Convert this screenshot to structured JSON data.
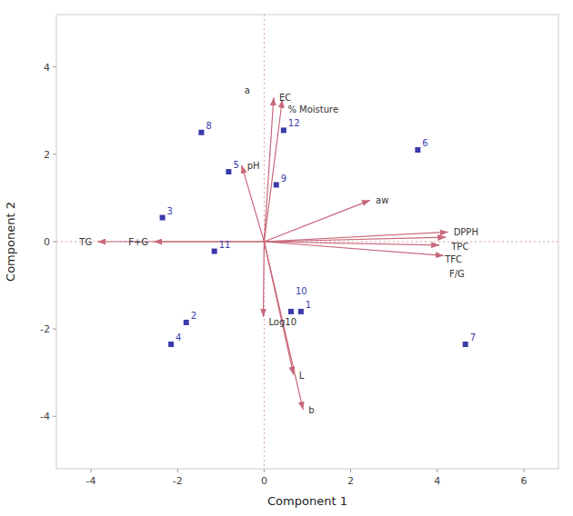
{
  "chart_data": {
    "type": "biplot",
    "x_label": "Component 1",
    "y_label": "Component 2",
    "xlim": [
      -4.8,
      6.8
    ],
    "ylim": [
      -5.2,
      5.2
    ],
    "xticks": [
      -4,
      -2,
      0,
      2,
      4,
      6
    ],
    "yticks": [
      -4,
      -2,
      0,
      2,
      4
    ],
    "grid": false,
    "origin": [
      0,
      0
    ],
    "samples": {
      "color": "#3a3aaa",
      "labels": [
        "1",
        "2",
        "3",
        "4",
        "5",
        "6",
        "7",
        "8",
        "9",
        "10",
        "11",
        "12"
      ],
      "x": [
        0.85,
        -1.8,
        -2.35,
        -2.15,
        -0.82,
        3.55,
        4.65,
        -1.45,
        0.28,
        0.62,
        -1.15,
        0.45
      ],
      "y": [
        -1.6,
        -1.85,
        0.55,
        -2.35,
        1.6,
        2.1,
        -2.35,
        2.5,
        1.3,
        -1.6,
        -0.22,
        2.55
      ]
    },
    "vectors": {
      "color": "#c8687a",
      "labels": [
        "EC",
        "% Moisture",
        "pH",
        "aw",
        "DPPH",
        "TPC",
        "TFC",
        "F/G",
        "TG",
        "F+G",
        "Log10",
        "L",
        "b"
      ],
      "x": [
        0.22,
        0.42,
        -0.52,
        2.45,
        4.25,
        4.2,
        4.05,
        4.15,
        -3.85,
        -2.55,
        -0.02,
        0.68,
        0.9
      ],
      "y": [
        3.3,
        3.25,
        1.75,
        0.95,
        0.22,
        0.1,
        -0.08,
        -0.32,
        0.0,
        0.0,
        -1.72,
        -3.05,
        -3.85
      ]
    },
    "annotations": [
      {
        "text": "a",
        "x": -0.22,
        "y": 3.3
      }
    ]
  }
}
